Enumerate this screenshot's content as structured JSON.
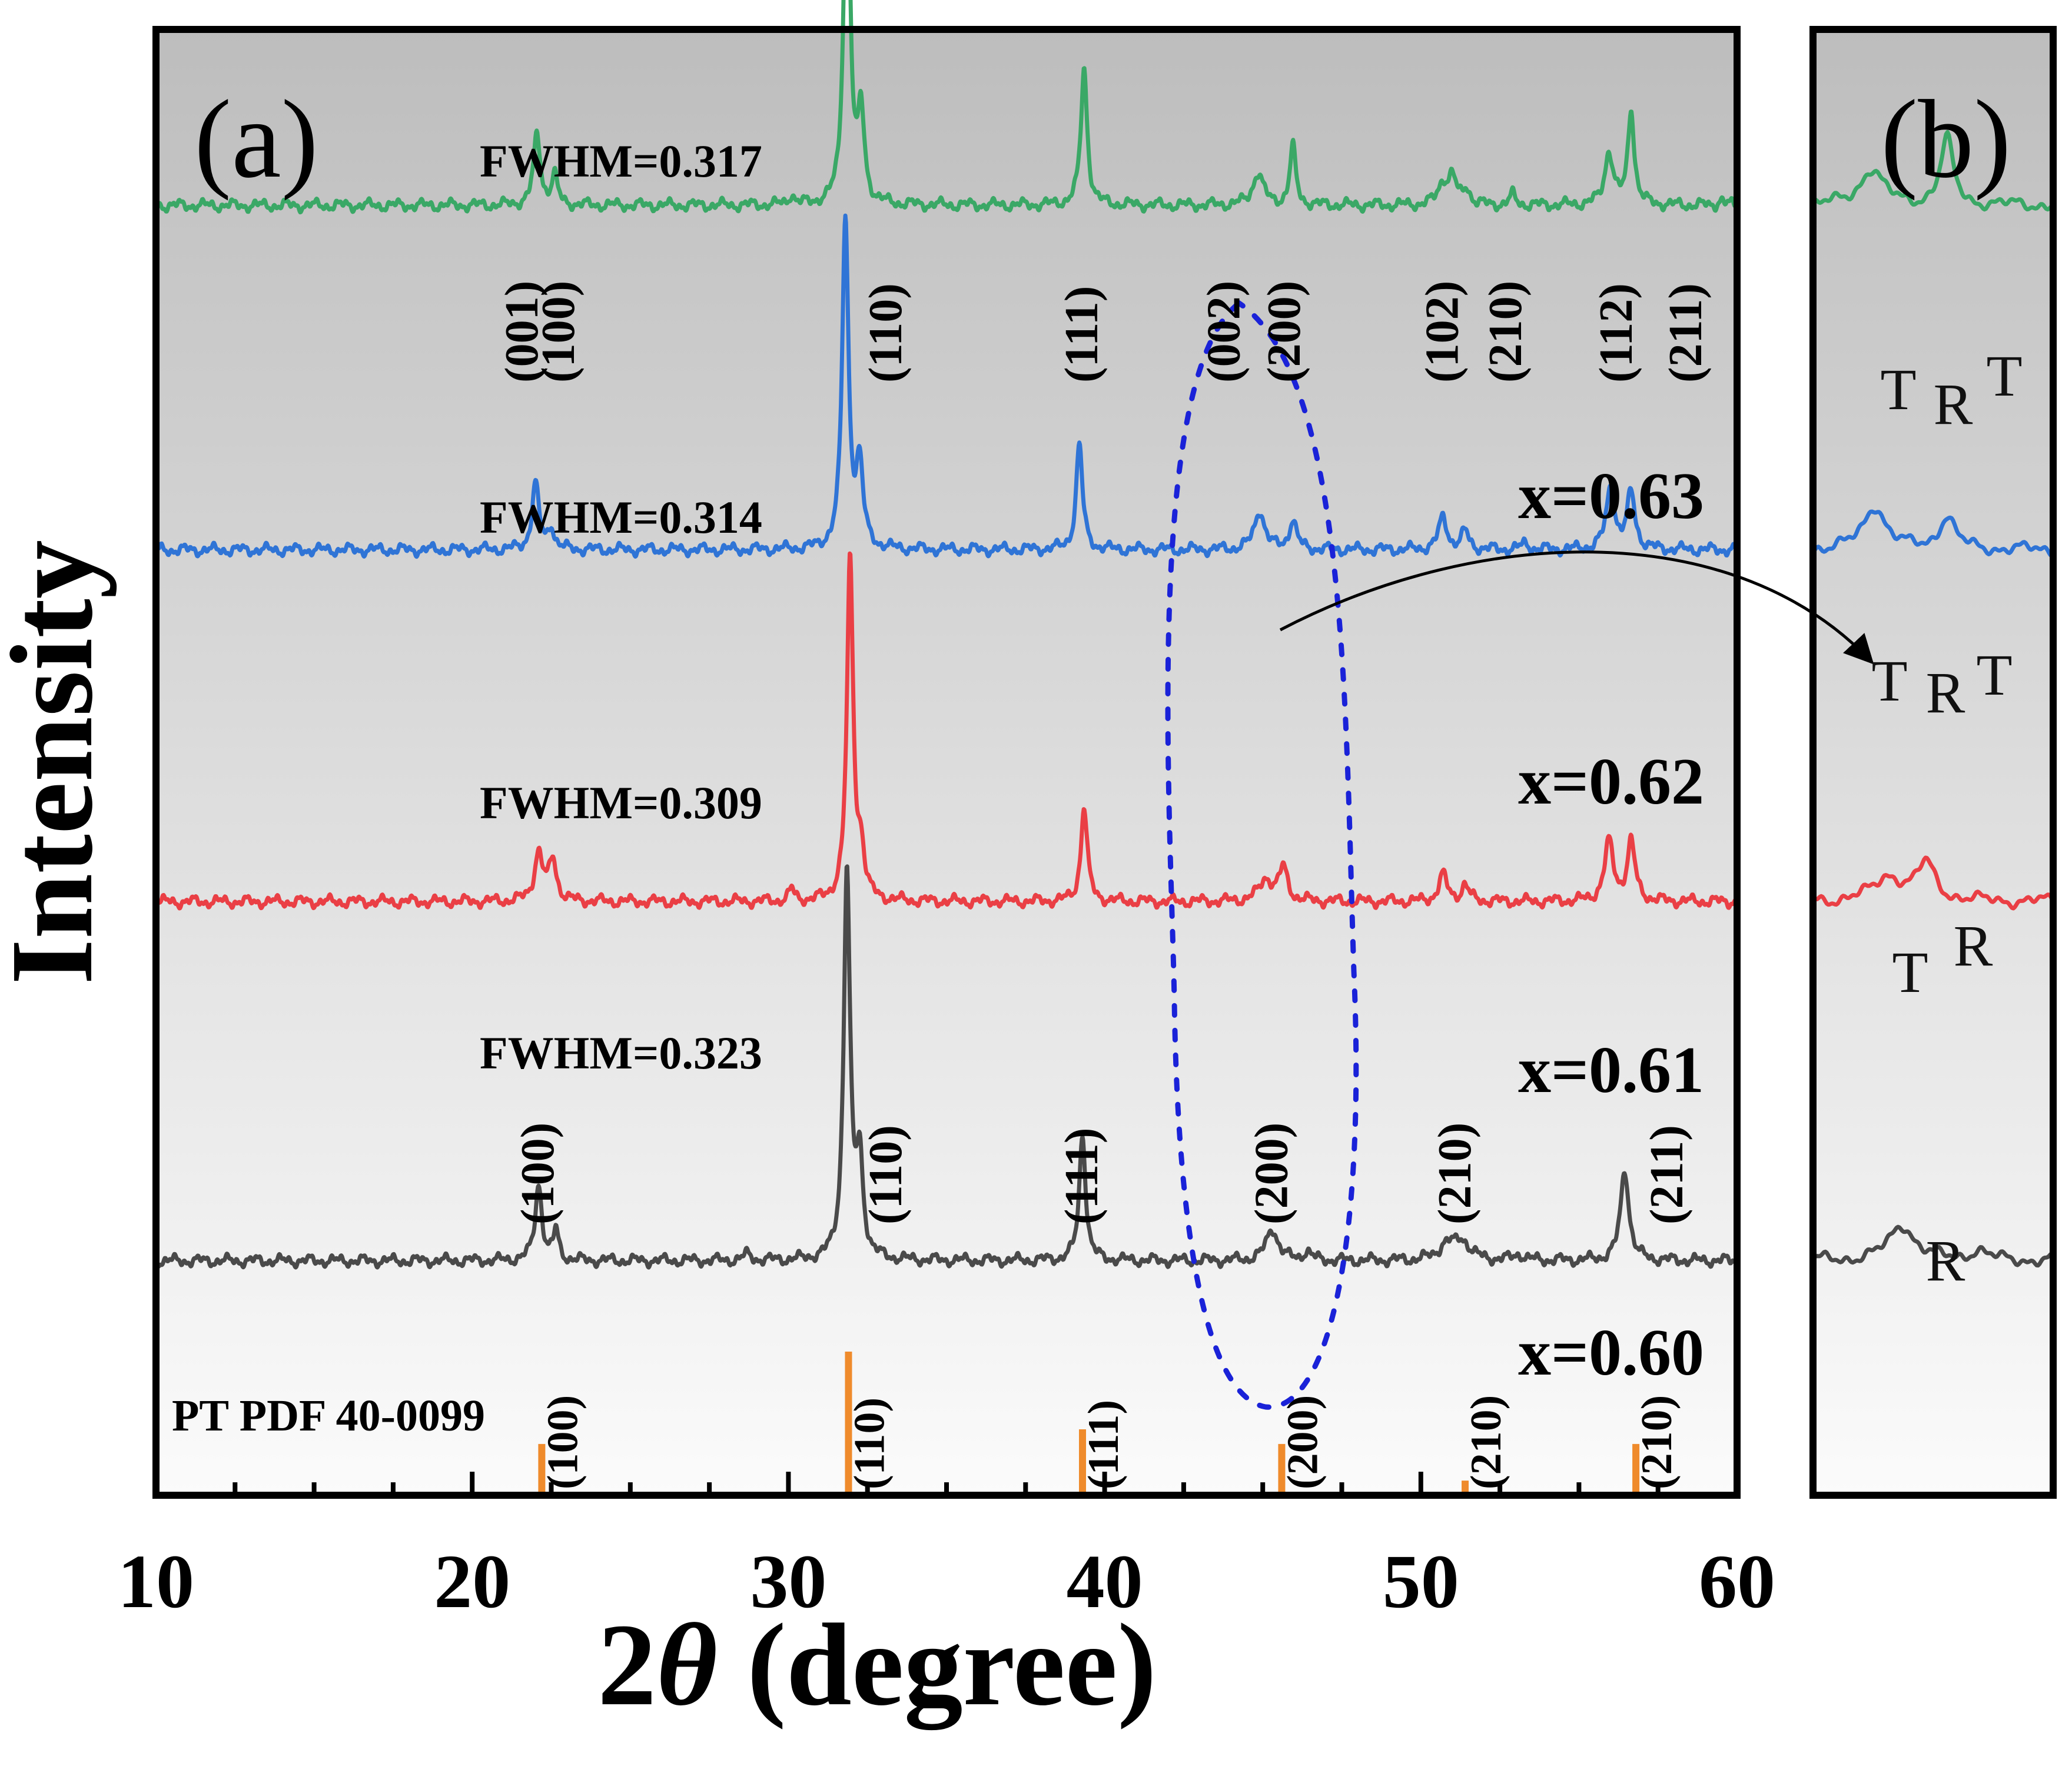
{
  "panel_a_label": "(a)",
  "panel_b_label": "(b)",
  "ylabel": "Intensity",
  "xlabel_prefix": "2",
  "xlabel_theta": "θ",
  "xlabel_suffix": " (degree)",
  "colors": {
    "green": "#3aa866",
    "blue": "#2f74d6",
    "red": "#ea3f45",
    "gray": "#4a4a4a",
    "orange": "#ef8b2c",
    "annotation_dash": "#1a22d8"
  },
  "chart_data": {
    "type": "line",
    "title": "",
    "xlabel": "2θ (degree)",
    "ylabel": "Intensity",
    "xlim": [
      10,
      60
    ],
    "xticks": [
      10,
      20,
      30,
      40,
      50,
      60
    ],
    "grid": false,
    "series": [
      {
        "name": "x=0.60",
        "label": "x=0.60",
        "color": "#4a4a4a",
        "fwhm_label": "FWHM=0.323",
        "baseline": 0.16,
        "peaks": [
          {
            "x": 22.1,
            "h": 0.052,
            "w": 0.13
          },
          {
            "x": 22.65,
            "h": 0.02,
            "w": 0.1
          },
          {
            "x": 28.7,
            "h": 0.004,
            "w": 0.15
          },
          {
            "x": 31.85,
            "h": 0.265,
            "w": 0.12
          },
          {
            "x": 32.25,
            "h": 0.065,
            "w": 0.13
          },
          {
            "x": 39.3,
            "h": 0.087,
            "w": 0.12
          },
          {
            "x": 45.3,
            "h": 0.022,
            "w": 0.22
          },
          {
            "x": 46.4,
            "h": 0.006,
            "w": 0.15
          },
          {
            "x": 50.8,
            "h": 0.01,
            "w": 0.3
          },
          {
            "x": 51.3,
            "h": 0.013,
            "w": 0.3
          },
          {
            "x": 53.1,
            "h": 0.004,
            "w": 0.2
          },
          {
            "x": 56.45,
            "h": 0.062,
            "w": 0.16
          }
        ],
        "peak_labels": [
          {
            "x": 22.1,
            "label": "(100)"
          },
          {
            "x": 33.1,
            "label": "(110)"
          },
          {
            "x": 39.3,
            "label": "(111)"
          },
          {
            "x": 45.3,
            "label": "(200)"
          },
          {
            "x": 51.1,
            "label": "(210)"
          },
          {
            "x": 57.8,
            "label": "(211)"
          }
        ]
      },
      {
        "name": "x=0.61",
        "label": "x=0.61",
        "color": "#ea3f45",
        "fwhm_label": "FWHM=0.309",
        "baseline": 0.405,
        "peaks": [
          {
            "x": 22.1,
            "h": 0.033,
            "w": 0.16
          },
          {
            "x": 22.55,
            "h": 0.028,
            "w": 0.14
          },
          {
            "x": 30.1,
            "h": 0.008,
            "w": 0.1
          },
          {
            "x": 31.95,
            "h": 0.232,
            "w": 0.12
          },
          {
            "x": 32.3,
            "h": 0.03,
            "w": 0.12
          },
          {
            "x": 39.35,
            "h": 0.065,
            "w": 0.12
          },
          {
            "x": 45.1,
            "h": 0.015,
            "w": 0.25
          },
          {
            "x": 45.65,
            "h": 0.022,
            "w": 0.16
          },
          {
            "x": 50.7,
            "h": 0.018,
            "w": 0.16
          },
          {
            "x": 51.4,
            "h": 0.011,
            "w": 0.14
          },
          {
            "x": 55.95,
            "h": 0.04,
            "w": 0.17
          },
          {
            "x": 56.65,
            "h": 0.04,
            "w": 0.15
          }
        ],
        "peak_labels": []
      },
      {
        "name": "x=0.62",
        "label": "x=0.62",
        "color": "#2f74d6",
        "fwhm_label": "FWHM=0.314",
        "baseline": 0.645,
        "peaks": [
          {
            "x": 22.0,
            "h": 0.045,
            "w": 0.13
          },
          {
            "x": 22.5,
            "h": 0.015,
            "w": 0.12
          },
          {
            "x": 31.8,
            "h": 0.225,
            "w": 0.12
          },
          {
            "x": 32.25,
            "h": 0.055,
            "w": 0.13
          },
          {
            "x": 39.2,
            "h": 0.072,
            "w": 0.12
          },
          {
            "x": 44.9,
            "h": 0.027,
            "w": 0.19
          },
          {
            "x": 45.95,
            "h": 0.02,
            "w": 0.14
          },
          {
            "x": 50.7,
            "h": 0.022,
            "w": 0.16
          },
          {
            "x": 51.4,
            "h": 0.012,
            "w": 0.14
          },
          {
            "x": 53.3,
            "h": 0.004,
            "w": 0.15
          },
          {
            "x": 56.0,
            "h": 0.042,
            "w": 0.16
          },
          {
            "x": 56.65,
            "h": 0.038,
            "w": 0.15
          }
        ],
        "peak_labels": []
      },
      {
        "name": "x=0.63",
        "label": "x=0.63",
        "color": "#3aa866",
        "fwhm_label": "FWHM=0.317",
        "baseline": 0.88,
        "peaks": [
          {
            "x": 22.05,
            "h": 0.048,
            "w": 0.13
          },
          {
            "x": 22.6,
            "h": 0.02,
            "w": 0.11
          },
          {
            "x": 30.1,
            "h": 0.007,
            "w": 0.1
          },
          {
            "x": 31.85,
            "h": 0.28,
            "w": 0.11
          },
          {
            "x": 32.3,
            "h": 0.06,
            "w": 0.12
          },
          {
            "x": 39.35,
            "h": 0.093,
            "w": 0.12
          },
          {
            "x": 44.85,
            "h": 0.022,
            "w": 0.2
          },
          {
            "x": 45.95,
            "h": 0.04,
            "w": 0.11
          },
          {
            "x": 50.7,
            "h": 0.015,
            "w": 0.18
          },
          {
            "x": 51.0,
            "h": 0.018,
            "w": 0.14
          },
          {
            "x": 51.45,
            "h": 0.011,
            "w": 0.13
          },
          {
            "x": 52.9,
            "h": 0.007,
            "w": 0.11
          },
          {
            "x": 55.95,
            "h": 0.036,
            "w": 0.16
          },
          {
            "x": 56.65,
            "h": 0.065,
            "w": 0.12
          },
          {
            "x": 59.5,
            "h": 0.004,
            "w": 0.1
          }
        ],
        "peak_labels": [
          {
            "x": 21.6,
            "label": "(001)"
          },
          {
            "x": 22.75,
            "label": "(100)"
          },
          {
            "x": 33.1,
            "label": "(110)"
          },
          {
            "x": 39.3,
            "label": "(111)"
          },
          {
            "x": 43.8,
            "label": "(002)"
          },
          {
            "x": 45.7,
            "label": "(200)"
          },
          {
            "x": 50.7,
            "label": "(102)"
          },
          {
            "x": 52.7,
            "label": "(210)"
          },
          {
            "x": 56.2,
            "label": "(112)"
          },
          {
            "x": 58.4,
            "label": "(211)"
          }
        ]
      }
    ],
    "reference": {
      "name": "PT PDF 40-0099",
      "color": "#ef8b2c",
      "sticks": [
        {
          "x": 22.2,
          "h": 0.035,
          "label": "(100)"
        },
        {
          "x": 31.9,
          "h": 0.098,
          "label": "(110)"
        },
        {
          "x": 39.3,
          "h": 0.045,
          "label": "(111)"
        },
        {
          "x": 45.6,
          "h": 0.035,
          "label": "(200)"
        },
        {
          "x": 51.4,
          "h": 0.01,
          "label": "(210)"
        },
        {
          "x": 56.8,
          "h": 0.035,
          "label": "(210)"
        }
      ]
    },
    "inset_b": {
      "title": "(b)",
      "traces": [
        {
          "series": "x=0.63",
          "phase_labels": [
            "T",
            "R",
            "T"
          ]
        },
        {
          "series": "x=0.62",
          "phase_labels": [
            "T",
            "R",
            "T"
          ]
        },
        {
          "series": "x=0.61",
          "phase_labels": [
            "T",
            "R"
          ]
        },
        {
          "series": "x=0.60",
          "phase_labels": [
            "R"
          ]
        }
      ]
    }
  }
}
